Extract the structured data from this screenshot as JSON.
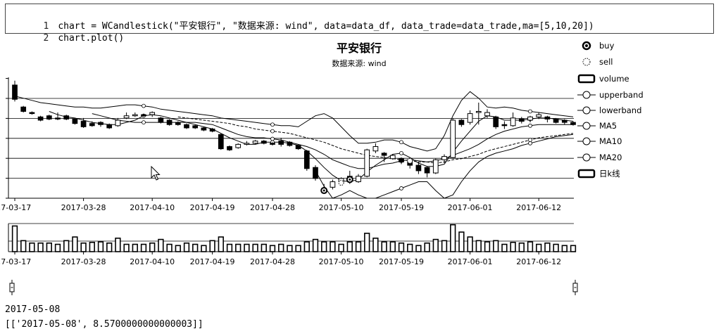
{
  "code_cell": {
    "lines": [
      {
        "num": "1",
        "text": "chart = WCandlestick(\"平安银行\", \"数据来源: wind\", data=data_df, data_trade=data_trade,ma=[5,10,20])"
      },
      {
        "num": "2",
        "text": "chart.plot()"
      }
    ]
  },
  "chart": {
    "title": "平安银行",
    "subtitle": "数据来源: wind",
    "x_tick_labels": [
      ".7-03-17",
      "2017-03-28",
      "2017-04-10",
      "2017-04-19",
      "2017-04-28",
      "2017-05-10",
      "2017-05-19",
      "2017-06-01",
      "2017-06-12"
    ],
    "legend": [
      {
        "label": "buy",
        "icon": "filled-circle-icon"
      },
      {
        "label": "sell",
        "icon": "dotted-circle-icon"
      },
      {
        "label": "volume",
        "icon": "rounded-rect-icon"
      },
      {
        "label": "upperband",
        "icon": "line-circle-icon"
      },
      {
        "label": "lowerband",
        "icon": "line-circle-icon"
      },
      {
        "label": "MA5",
        "icon": "line-circle-icon"
      },
      {
        "label": "MA10",
        "icon": "line-circle-icon"
      },
      {
        "label": "MA20",
        "icon": "line-circle-icon"
      },
      {
        "label": "日k线",
        "icon": "rounded-rect-icon"
      }
    ]
  },
  "output": {
    "selected_date": "2017-05-08",
    "selected_value": "[['2017-05-08', 8.5700000000000003]]"
  },
  "chart_data": {
    "type": "candlestick",
    "title": "平安银行",
    "subtitle": "数据来源: wind",
    "candles": [
      {
        "o": 9.58,
        "h": 9.62,
        "c": 9.45,
        "l": 9.43,
        "v": 10.5
      },
      {
        "o": 9.38,
        "h": 9.39,
        "c": 9.34,
        "l": 9.33,
        "v": 4.5
      },
      {
        "o": 9.33,
        "h": 9.34,
        "c": 9.32,
        "l": 9.31,
        "v": 3.5
      },
      {
        "o": 9.29,
        "h": 9.3,
        "c": 9.26,
        "l": 9.25,
        "v": 3.5
      },
      {
        "o": 9.3,
        "h": 9.31,
        "c": 9.27,
        "l": 9.26,
        "v": 3.5
      },
      {
        "o": 9.28,
        "h": 9.33,
        "c": 9.28,
        "l": 9.26,
        "v": 3.0
      },
      {
        "o": 9.3,
        "h": 9.31,
        "c": 9.27,
        "l": 9.26,
        "v": 4.5
      },
      {
        "o": 9.27,
        "h": 9.28,
        "c": 9.23,
        "l": 9.22,
        "v": 6.0
      },
      {
        "o": 9.25,
        "h": 9.28,
        "c": 9.2,
        "l": 9.19,
        "v": 3.5
      },
      {
        "o": 9.23,
        "h": 9.25,
        "c": 9.21,
        "l": 9.2,
        "v": 3.8
      },
      {
        "o": 9.24,
        "h": 9.25,
        "c": 9.22,
        "l": 9.2,
        "v": 4.0
      },
      {
        "o": 9.22,
        "h": 9.23,
        "c": 9.19,
        "l": 9.18,
        "v": 3.5
      },
      {
        "o": 9.21,
        "h": 9.28,
        "c": 9.26,
        "l": 9.2,
        "v": 5.5
      },
      {
        "o": 9.28,
        "h": 9.33,
        "c": 9.3,
        "l": 9.27,
        "v": 3.0
      },
      {
        "o": 9.3,
        "h": 9.33,
        "c": 9.31,
        "l": 9.29,
        "v": 3.0
      },
      {
        "o": 9.31,
        "h": 9.32,
        "c": 9.3,
        "l": 9.29,
        "v": 3.0
      },
      {
        "o": 9.31,
        "h": 9.34,
        "c": 9.33,
        "l": 9.29,
        "v": 3.5
      },
      {
        "o": 9.28,
        "h": 9.29,
        "c": 9.24,
        "l": 9.23,
        "v": 5.0
      },
      {
        "o": 9.26,
        "h": 9.27,
        "c": 9.22,
        "l": 9.21,
        "v": 3.0
      },
      {
        "o": 9.24,
        "h": 9.25,
        "c": 9.22,
        "l": 9.21,
        "v": 2.5
      },
      {
        "o": 9.22,
        "h": 9.23,
        "c": 9.19,
        "l": 9.18,
        "v": 3.5
      },
      {
        "o": 9.21,
        "h": 9.22,
        "c": 9.19,
        "l": 9.18,
        "v": 3.0
      },
      {
        "o": 9.19,
        "h": 9.2,
        "c": 9.17,
        "l": 9.16,
        "v": 2.5
      },
      {
        "o": 9.18,
        "h": 9.19,
        "c": 9.16,
        "l": 9.15,
        "v": 4.5
      },
      {
        "o": 9.13,
        "h": 9.14,
        "c": 9.0,
        "l": 8.99,
        "v": 6.0
      },
      {
        "o": 9.02,
        "h": 9.03,
        "c": 8.99,
        "l": 8.98,
        "v": 3.0
      },
      {
        "o": 9.01,
        "h": 9.05,
        "c": 9.04,
        "l": 9.0,
        "v": 3.0
      },
      {
        "o": 9.04,
        "h": 9.07,
        "c": 9.05,
        "l": 9.03,
        "v": 3.0
      },
      {
        "o": 9.05,
        "h": 9.08,
        "c": 9.07,
        "l": 9.04,
        "v": 3.0
      },
      {
        "o": 9.07,
        "h": 9.08,
        "c": 9.05,
        "l": 9.04,
        "v": 3.0
      },
      {
        "o": 9.05,
        "h": 9.06,
        "c": 9.04,
        "l": 9.03,
        "v": 2.5
      },
      {
        "o": 9.07,
        "h": 9.1,
        "c": 9.04,
        "l": 9.02,
        "v": 3.0
      },
      {
        "o": 9.06,
        "h": 9.07,
        "c": 9.03,
        "l": 9.02,
        "v": 2.5
      },
      {
        "o": 9.03,
        "h": 9.04,
        "c": 9.0,
        "l": 8.99,
        "v": 2.5
      },
      {
        "o": 8.98,
        "h": 8.99,
        "c": 8.82,
        "l": 8.8,
        "v": 4.0
      },
      {
        "o": 8.83,
        "h": 8.85,
        "c": 8.73,
        "l": 8.71,
        "v": 5.0
      },
      {
        "o": 8.64,
        "h": 8.68,
        "c": 8.62,
        "l": 8.6,
        "v": 4.0
      },
      {
        "o": 8.65,
        "h": 8.72,
        "c": 8.7,
        "l": 8.63,
        "v": 4.0
      },
      {
        "o": 8.7,
        "h": 8.74,
        "c": 8.73,
        "l": 8.67,
        "v": 3.0
      },
      {
        "o": 8.71,
        "h": 8.8,
        "c": 8.75,
        "l": 8.68,
        "v": 4.0
      },
      {
        "o": 8.7,
        "h": 8.77,
        "c": 8.75,
        "l": 8.69,
        "v": 4.0
      },
      {
        "o": 8.75,
        "h": 9.0,
        "c": 8.99,
        "l": 8.74,
        "v": 7.5
      },
      {
        "o": 8.98,
        "h": 9.05,
        "c": 9.02,
        "l": 8.96,
        "v": 5.5
      },
      {
        "o": 8.96,
        "h": 8.97,
        "c": 8.94,
        "l": 8.88,
        "v": 4.0
      },
      {
        "o": 8.91,
        "h": 8.95,
        "c": 8.94,
        "l": 8.9,
        "v": 4.0
      },
      {
        "o": 8.91,
        "h": 8.92,
        "c": 8.88,
        "l": 8.86,
        "v": 3.5
      },
      {
        "o": 8.88,
        "h": 8.9,
        "c": 8.85,
        "l": 8.82,
        "v": 3.0
      },
      {
        "o": 8.85,
        "h": 8.88,
        "c": 8.8,
        "l": 8.77,
        "v": 2.5
      },
      {
        "o": 8.83,
        "h": 8.84,
        "c": 8.78,
        "l": 8.74,
        "v": 3.5
      },
      {
        "o": 8.78,
        "h": 8.91,
        "c": 8.9,
        "l": 8.77,
        "v": 5.0
      },
      {
        "o": 8.9,
        "h": 8.95,
        "c": 8.93,
        "l": 8.87,
        "v": 4.5
      },
      {
        "o": 8.92,
        "h": 9.28,
        "c": 9.26,
        "l": 8.91,
        "v": 11.0
      },
      {
        "o": 9.26,
        "h": 9.27,
        "c": 9.22,
        "l": 9.2,
        "v": 8.0
      },
      {
        "o": 9.24,
        "h": 9.35,
        "c": 9.32,
        "l": 9.22,
        "v": 6.0
      },
      {
        "o": 9.33,
        "h": 9.42,
        "c": 9.34,
        "l": 9.22,
        "v": 4.5
      },
      {
        "o": 9.3,
        "h": 9.36,
        "c": 9.33,
        "l": 9.28,
        "v": 4.0
      },
      {
        "o": 9.29,
        "h": 9.3,
        "c": 9.2,
        "l": 9.18,
        "v": 4.5
      },
      {
        "o": 9.22,
        "h": 9.25,
        "c": 9.21,
        "l": 9.18,
        "v": 3.0
      },
      {
        "o": 9.21,
        "h": 9.33,
        "c": 9.28,
        "l": 9.2,
        "v": 3.8
      },
      {
        "o": 9.27,
        "h": 9.29,
        "c": 9.25,
        "l": 9.23,
        "v": 3.5
      },
      {
        "o": 9.26,
        "h": 9.3,
        "c": 9.29,
        "l": 9.24,
        "v": 4.0
      },
      {
        "o": 9.29,
        "h": 9.33,
        "c": 9.31,
        "l": 9.27,
        "v": 3.0
      },
      {
        "o": 9.29,
        "h": 9.3,
        "c": 9.27,
        "l": 9.24,
        "v": 3.5
      },
      {
        "o": 9.27,
        "h": 9.28,
        "c": 9.24,
        "l": 9.23,
        "v": 3.0
      },
      {
        "o": 9.26,
        "h": 9.27,
        "c": 9.24,
        "l": 9.22,
        "v": 2.5
      },
      {
        "o": 9.24,
        "h": 9.25,
        "c": 9.22,
        "l": 9.21,
        "v": 2.5
      }
    ],
    "upperband": [
      9.48,
      9.46,
      9.44,
      9.42,
      9.41,
      9.4,
      9.39,
      9.38,
      9.38,
      9.37,
      9.37,
      9.38,
      9.39,
      9.4,
      9.4,
      9.39,
      9.38,
      9.36,
      9.35,
      9.34,
      9.33,
      9.32,
      9.31,
      9.3,
      9.28,
      9.27,
      9.26,
      9.25,
      9.24,
      9.23,
      9.22,
      9.21,
      9.21,
      9.2,
      9.25,
      9.3,
      9.32,
      9.28,
      9.2,
      9.12,
      9.05,
      9.05,
      9.06,
      9.08,
      9.08,
      9.06,
      9.02,
      9.0,
      8.98,
      9.0,
      9.12,
      9.3,
      9.44,
      9.52,
      9.46,
      9.38,
      9.37,
      9.38,
      9.37,
      9.35,
      9.34,
      9.33,
      9.32,
      9.31,
      9.3,
      9.29
    ],
    "lowerband": [
      null,
      null,
      null,
      null,
      null,
      null,
      null,
      null,
      null,
      null,
      null,
      null,
      null,
      null,
      null,
      null,
      null,
      null,
      null,
      null,
      null,
      null,
      null,
      null,
      null,
      null,
      null,
      null,
      null,
      null,
      null,
      null,
      null,
      null,
      null,
      8.8,
      8.66,
      8.55,
      8.58,
      8.62,
      8.58,
      8.55,
      8.55,
      8.58,
      8.61,
      8.64,
      8.67,
      8.7,
      8.7,
      8.62,
      8.55,
      8.58,
      8.7,
      8.8,
      8.88,
      8.93,
      8.96,
      8.98,
      9.0,
      9.03,
      9.05,
      9.07,
      9.09,
      9.11,
      9.12,
      9.13
    ],
    "ma5": [
      null,
      null,
      null,
      null,
      9.34,
      9.31,
      9.29,
      9.28,
      9.26,
      9.24,
      9.23,
      9.22,
      9.22,
      9.24,
      9.26,
      9.3,
      9.31,
      9.3,
      9.28,
      9.26,
      9.24,
      9.22,
      9.2,
      9.18,
      9.14,
      9.1,
      9.07,
      9.04,
      9.04,
      9.06,
      9.06,
      9.06,
      9.05,
      9.03,
      8.98,
      8.91,
      8.83,
      8.76,
      8.71,
      8.7,
      8.72,
      8.79,
      8.85,
      8.9,
      8.95,
      8.96,
      8.92,
      8.87,
      8.84,
      8.84,
      8.86,
      8.97,
      9.07,
      9.16,
      9.25,
      9.3,
      9.29,
      9.26,
      9.26,
      9.26,
      9.27,
      9.28,
      9.28,
      9.27,
      9.26,
      9.25
    ],
    "ma10": [
      null,
      null,
      null,
      null,
      null,
      null,
      null,
      null,
      null,
      9.32,
      9.3,
      9.28,
      9.26,
      9.25,
      9.24,
      9.24,
      9.24,
      9.24,
      9.24,
      9.24,
      9.24,
      9.24,
      9.23,
      9.22,
      9.19,
      9.16,
      9.13,
      9.11,
      9.1,
      9.1,
      9.09,
      9.08,
      9.06,
      9.04,
      9.02,
      8.99,
      8.95,
      8.9,
      8.87,
      8.84,
      8.82,
      8.82,
      8.84,
      8.86,
      8.87,
      8.89,
      8.9,
      8.89,
      8.88,
      8.89,
      8.91,
      8.94,
      8.97,
      9.0,
      9.04,
      9.09,
      9.13,
      9.16,
      9.18,
      9.2,
      9.21,
      9.22,
      9.22,
      9.22,
      9.22,
      9.22
    ],
    "ma20": [
      null,
      null,
      null,
      null,
      null,
      null,
      null,
      null,
      null,
      null,
      null,
      null,
      null,
      null,
      null,
      null,
      null,
      null,
      null,
      9.29,
      9.28,
      9.27,
      9.26,
      9.25,
      9.24,
      9.23,
      9.21,
      9.2,
      9.18,
      9.17,
      9.16,
      9.15,
      9.14,
      9.12,
      9.1,
      9.08,
      9.06,
      9.03,
      9.0,
      8.98,
      8.96,
      8.94,
      8.93,
      8.92,
      8.91,
      8.9,
      8.89,
      8.88,
      8.88,
      8.87,
      8.88,
      8.9,
      8.91,
      8.93,
      8.95,
      8.98,
      9.0,
      9.02,
      9.04,
      9.06,
      9.08,
      9.1,
      9.11,
      9.12,
      9.13,
      9.14
    ],
    "buy": [
      {
        "i": 36,
        "y": 8.62
      },
      {
        "i": 39,
        "y": 8.72
      }
    ],
    "sell": [
      {
        "i": 38,
        "y": 8.69
      },
      {
        "i": 46,
        "y": 8.89
      }
    ],
    "ylim": [
      8.55,
      9.65
    ],
    "volume_max": 11.5,
    "grid": true,
    "legend_position": "right"
  }
}
